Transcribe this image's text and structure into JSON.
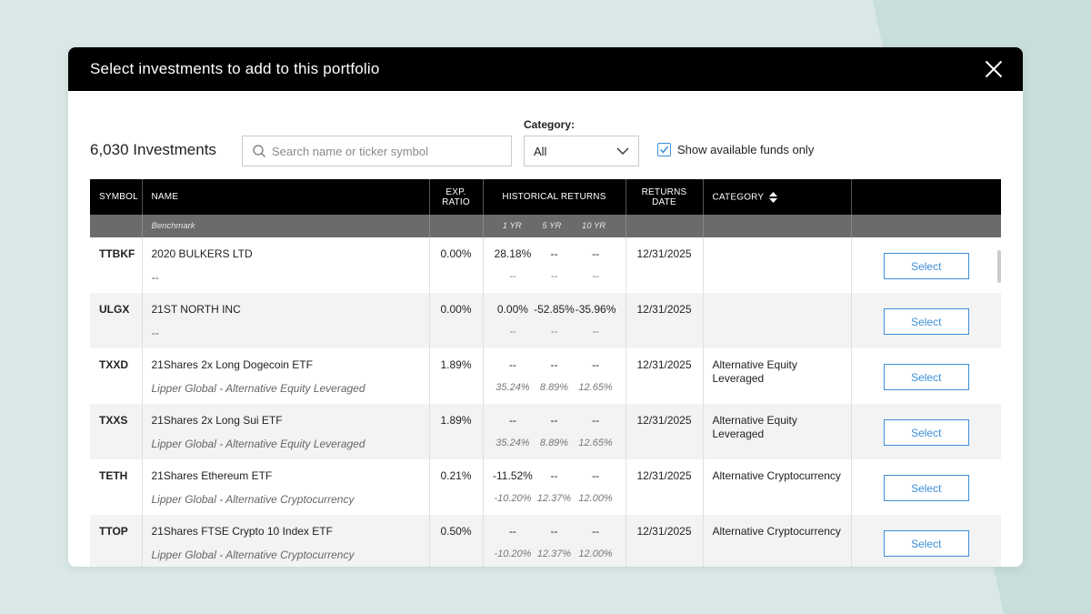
{
  "modal": {
    "title": "Select investments to add to this portfolio"
  },
  "toolbar": {
    "count": "6,030 Investments",
    "search_placeholder": "Search name or ticker symbol",
    "category_label": "Category:",
    "category_value": "All",
    "available_label": "Show available funds only",
    "available_checked": true
  },
  "colors": {
    "accent": "#3c8fd8",
    "header_bg": "#000000",
    "subheader_bg": "#6b6b6b"
  },
  "table": {
    "headers": {
      "symbol": "SYMBOL",
      "name": "NAME",
      "exp_ratio": "EXP. RATIO",
      "historical": "HISTORICAL RETURNS",
      "returns_date": "RETURNS DATE",
      "category": "CATEGORY"
    },
    "subheader": {
      "benchmark": "Benchmark",
      "yr1": "1 YR",
      "yr5": "5 YR",
      "yr10": "10 YR"
    },
    "select_label": "Select",
    "rows": [
      {
        "symbol": "TTBKF",
        "name": "2020 BULKERS LTD",
        "benchmark": "--",
        "exp": "0.00%",
        "r1": "28.18%",
        "r5": "--",
        "r10": "--",
        "b1": "--",
        "b5": "--",
        "b10": "--",
        "date": "12/31/2025",
        "category": ""
      },
      {
        "symbol": "ULGX",
        "name": "21ST NORTH INC",
        "benchmark": "--",
        "exp": "0.00%",
        "r1": "0.00%",
        "r5": "-52.85%",
        "r10": "-35.96%",
        "b1": "--",
        "b5": "--",
        "b10": "--",
        "date": "12/31/2025",
        "category": ""
      },
      {
        "symbol": "TXXD",
        "name": "21Shares 2x Long Dogecoin ETF",
        "benchmark": "Lipper Global - Alternative Equity Leveraged",
        "exp": "1.89%",
        "r1": "--",
        "r5": "--",
        "r10": "--",
        "b1": "35.24%",
        "b5": "8.89%",
        "b10": "12.65%",
        "date": "12/31/2025",
        "category": "Alternative Equity Leveraged"
      },
      {
        "symbol": "TXXS",
        "name": " 21Shares 2x Long Sui ETF",
        "benchmark": "Lipper Global - Alternative Equity Leveraged",
        "exp": "1.89%",
        "r1": "--",
        "r5": "--",
        "r10": "--",
        "b1": "35.24%",
        "b5": "8.89%",
        "b10": "12.65%",
        "date": "12/31/2025",
        "category": "Alternative Equity Leveraged"
      },
      {
        "symbol": "TETH",
        "name": "21Shares Ethereum ETF",
        "benchmark": "Lipper Global - Alternative Cryptocurrency",
        "exp": "0.21%",
        "r1": "-11.52%",
        "r5": "--",
        "r10": "--",
        "b1": "-10.20%",
        "b5": "12.37%",
        "b10": "12.00%",
        "date": "12/31/2025",
        "category": "Alternative Cryptocurrency"
      },
      {
        "symbol": "TTOP",
        "name": "21Shares FTSE Crypto 10 Index ETF",
        "benchmark": "Lipper Global - Alternative Cryptocurrency",
        "exp": "0.50%",
        "r1": "--",
        "r5": "--",
        "r10": "--",
        "b1": "-10.20%",
        "b5": "12.37%",
        "b10": "12.00%",
        "date": "12/31/2025",
        "category": "Alternative Cryptocurrency"
      }
    ]
  }
}
